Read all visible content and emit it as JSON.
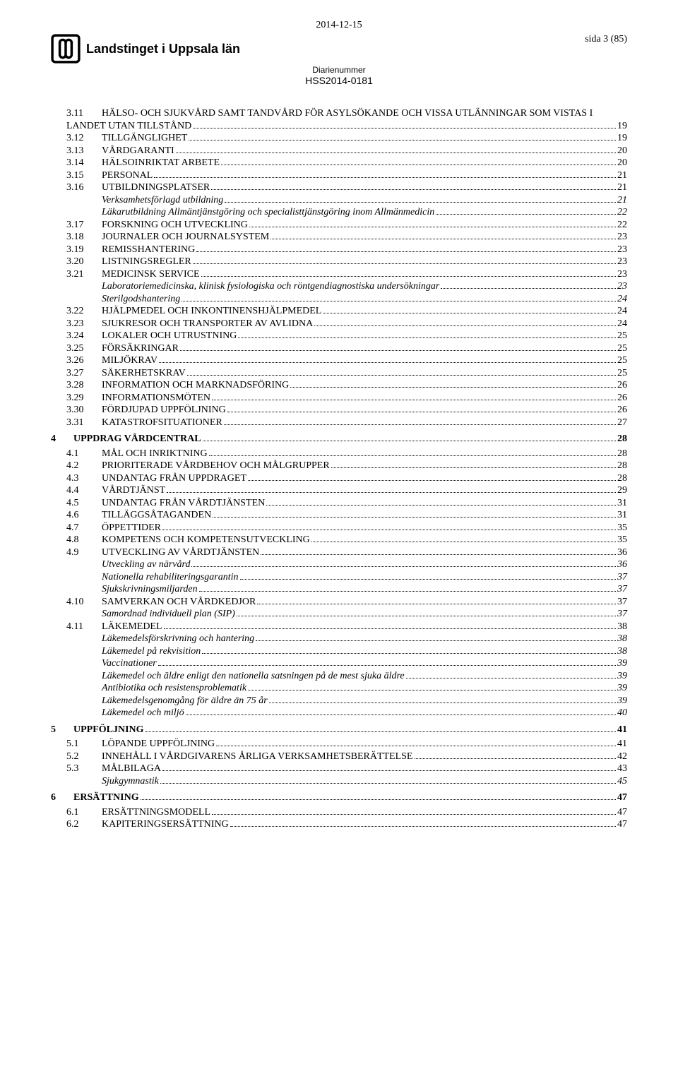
{
  "header": {
    "date": "2014-12-15",
    "org_name": "Landstinget i Uppsala län",
    "page_label": "sida 3 (85)",
    "diarie_label": "Diarienummer",
    "diarie_number": "HSS2014-0181"
  },
  "toc": [
    {
      "level": "sub",
      "num": "3.11",
      "title": "Hälso- och sjukvård samt tandvård för asylsökande och vissa utlänningar som vistas i landet utan tillstånd",
      "page": "19",
      "wrap": true,
      "wrap_at": 13
    },
    {
      "level": "sub",
      "num": "3.12",
      "title": "Tillgänglighet",
      "page": "19"
    },
    {
      "level": "sub",
      "num": "3.13",
      "title": "Vårdgaranti",
      "page": "20"
    },
    {
      "level": "sub",
      "num": "3.14",
      "title": "Hälsoinriktat arbete",
      "page": "20"
    },
    {
      "level": "sub",
      "num": "3.15",
      "title": "Personal",
      "page": "21"
    },
    {
      "level": "sub",
      "num": "3.16",
      "title": "Utbildningsplatser",
      "page": "21"
    },
    {
      "level": "ital",
      "title": "Verksamhetsförlagd utbildning",
      "page": "21"
    },
    {
      "level": "ital",
      "title": "Läkarutbildning Allmäntjänstgöring och specialisttjänstgöring inom Allmänmedicin",
      "page": "22"
    },
    {
      "level": "sub",
      "num": "3.17",
      "title": "Forskning och utveckling",
      "page": "22"
    },
    {
      "level": "sub",
      "num": "3.18",
      "title": "Journaler och journalsystem",
      "page": "23"
    },
    {
      "level": "sub",
      "num": "3.19",
      "title": "Remisshantering",
      "page": "23"
    },
    {
      "level": "sub",
      "num": "3.20",
      "title": "Listningsregler",
      "page": "23"
    },
    {
      "level": "sub",
      "num": "3.21",
      "title": "Medicinsk service",
      "page": "23"
    },
    {
      "level": "ital",
      "title": "Laboratoriemedicinska, klinisk fysiologiska och röntgendiagnostiska undersökningar",
      "page": "23"
    },
    {
      "level": "ital",
      "title": "Sterilgodshantering",
      "page": "24"
    },
    {
      "level": "sub",
      "num": "3.22",
      "title": "Hjälpmedel och inkontinenshjälpmedel",
      "page": "24"
    },
    {
      "level": "sub",
      "num": "3.23",
      "title": "Sjukresor och transporter av avlidna",
      "page": "24"
    },
    {
      "level": "sub",
      "num": "3.24",
      "title": "Lokaler och utrustning",
      "page": "25"
    },
    {
      "level": "sub",
      "num": "3.25",
      "title": "Försäkringar",
      "page": "25"
    },
    {
      "level": "sub",
      "num": "3.26",
      "title": "Miljökrav",
      "page": "25"
    },
    {
      "level": "sub",
      "num": "3.27",
      "title": "Säkerhetskrav",
      "page": "25"
    },
    {
      "level": "sub",
      "num": "3.28",
      "title": "Information och marknadsföring",
      "page": "26"
    },
    {
      "level": "sub",
      "num": "3.29",
      "title": "Informationsmöten",
      "page": "26"
    },
    {
      "level": "sub",
      "num": "3.30",
      "title": "Fördjupad uppföljning",
      "page": "26"
    },
    {
      "level": "sub",
      "num": "3.31",
      "title": "Katastrofsituationer",
      "page": "27"
    },
    {
      "level": "top",
      "num": "4",
      "title": "UPPDRAG VÅRDCENTRAL",
      "page": "28"
    },
    {
      "level": "sub",
      "num": "4.1",
      "title": "Mål och inriktning",
      "page": "28"
    },
    {
      "level": "sub",
      "num": "4.2",
      "title": "Prioriterade vårdbehov och målgrupper",
      "page": "28"
    },
    {
      "level": "sub",
      "num": "4.3",
      "title": "Undantag från uppdraget",
      "page": "28"
    },
    {
      "level": "sub",
      "num": "4.4",
      "title": "Vårdtjänst",
      "page": "29"
    },
    {
      "level": "sub",
      "num": "4.5",
      "title": "Undantag från vårdtjänsten",
      "page": "31"
    },
    {
      "level": "sub",
      "num": "4.6",
      "title": "Tilläggsåtaganden",
      "page": "31"
    },
    {
      "level": "sub",
      "num": "4.7",
      "title": "Öppettider",
      "page": "35"
    },
    {
      "level": "sub",
      "num": "4.8",
      "title": "Kompetens och kompetensutveckling",
      "page": "35"
    },
    {
      "level": "sub",
      "num": "4.9",
      "title": "Utveckling av vårdtjänsten",
      "page": "36"
    },
    {
      "level": "ital",
      "title": "Utveckling av närvård",
      "page": "36"
    },
    {
      "level": "ital",
      "title": "Nationella rehabiliteringsgarantin",
      "page": "37"
    },
    {
      "level": "ital",
      "title": "Sjukskrivningsmiljarden",
      "page": "37"
    },
    {
      "level": "sub",
      "num": "4.10",
      "title": "Samverkan och vårdkedjor",
      "page": "37"
    },
    {
      "level": "ital",
      "title": "Samordnad individuell plan (SIP)",
      "page": "37"
    },
    {
      "level": "sub",
      "num": "4.11",
      "title": "Läkemedel",
      "page": "38"
    },
    {
      "level": "ital",
      "title": "Läkemedelsförskrivning och hantering",
      "page": "38"
    },
    {
      "level": "ital",
      "title": "Läkemedel på rekvisition",
      "page": "38"
    },
    {
      "level": "ital",
      "title": "Vaccinationer",
      "page": "39"
    },
    {
      "level": "ital",
      "title": "Läkemedel och äldre enligt den nationella satsningen på de mest sjuka äldre",
      "page": "39"
    },
    {
      "level": "ital",
      "title": "Antibiotika och resistensproblematik",
      "page": "39"
    },
    {
      "level": "ital",
      "title": "Läkemedelsgenomgång för äldre än 75 år",
      "page": "39"
    },
    {
      "level": "ital",
      "title": "Läkemedel och miljö",
      "page": "40"
    },
    {
      "level": "top",
      "num": "5",
      "title": "UPPFÖLJNING",
      "page": "41"
    },
    {
      "level": "sub",
      "num": "5.1",
      "title": "Löpande uppföljning",
      "page": "41"
    },
    {
      "level": "sub",
      "num": "5.2",
      "title": "Innehåll i vårdgivarens årliga verksamhetsberättelse",
      "page": "42"
    },
    {
      "level": "sub",
      "num": "5.3",
      "title": "Målbilaga",
      "page": "43"
    },
    {
      "level": "ital",
      "title": "Sjukgymnastik",
      "page": "45"
    },
    {
      "level": "top",
      "num": "6",
      "title": "ERSÄTTNING",
      "page": "47"
    },
    {
      "level": "sub",
      "num": "6.1",
      "title": "Ersättningsmodell",
      "page": "47"
    },
    {
      "level": "sub",
      "num": "6.2",
      "title": "Kapiteringsersättning",
      "page": "47"
    }
  ]
}
